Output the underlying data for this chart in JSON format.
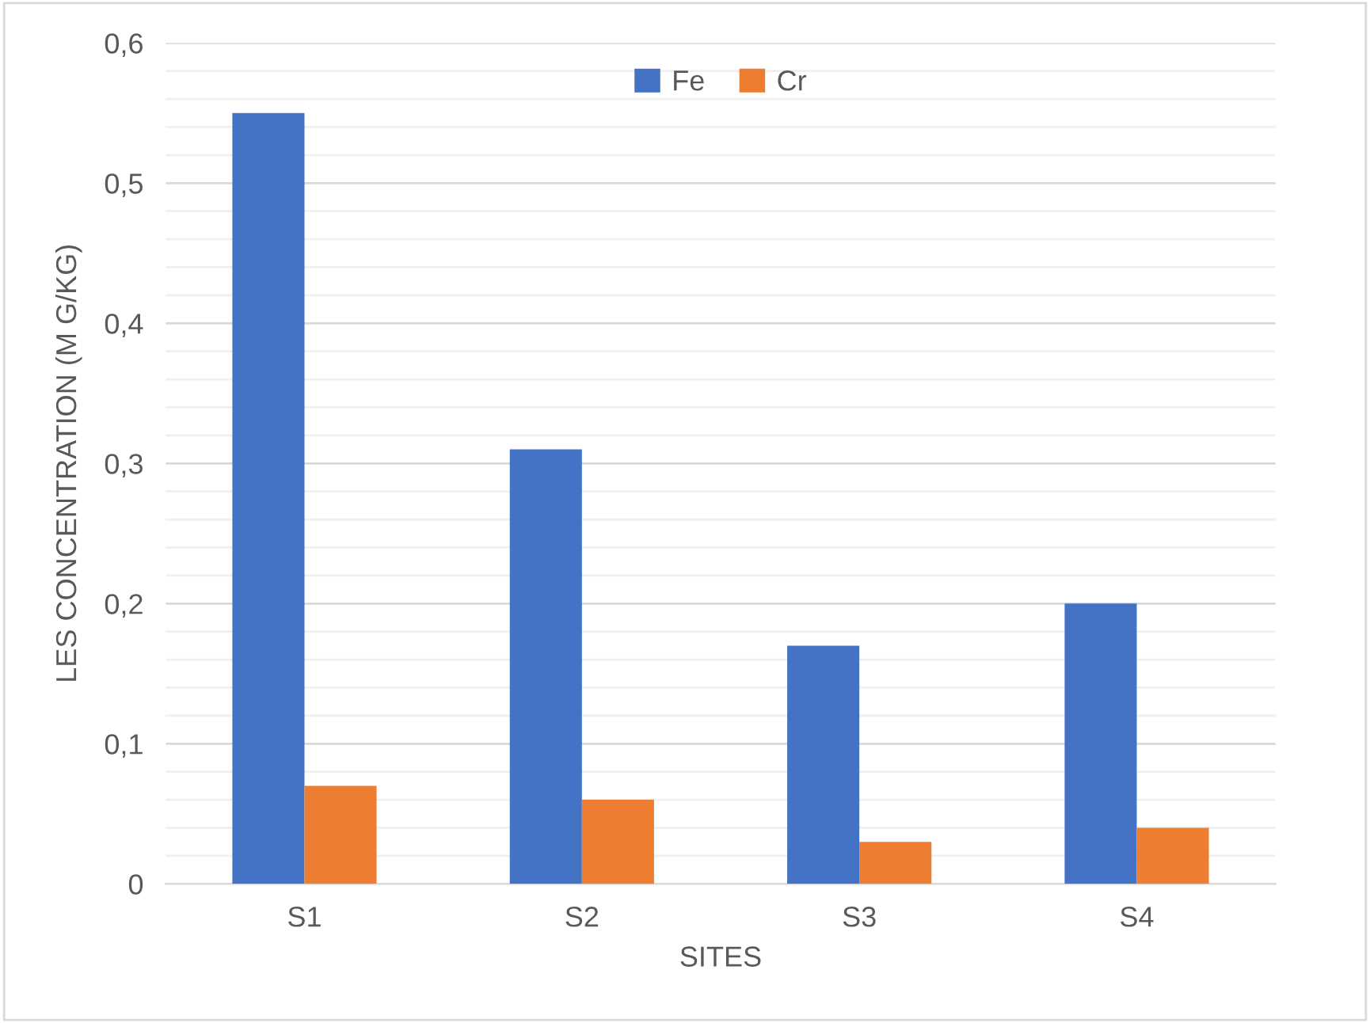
{
  "chart_data": {
    "type": "bar",
    "xlabel": "SITES",
    "ylabel": "LES CONCENTRATION (M G/KG)",
    "categories": [
      "S1",
      "S2",
      "S3",
      "S4"
    ],
    "series": [
      {
        "name": "Fe",
        "color": "#4472c4",
        "values": [
          0.55,
          0.31,
          0.17,
          0.2
        ]
      },
      {
        "name": "Cr",
        "color": "#ed7d31",
        "values": [
          0.07,
          0.06,
          0.03,
          0.04
        ]
      }
    ],
    "ylim": [
      0,
      0.6
    ],
    "yticks": [
      {
        "value": 0,
        "label": "0"
      },
      {
        "value": 0.1,
        "label": "0,1"
      },
      {
        "value": 0.2,
        "label": "0,2"
      },
      {
        "value": 0.3,
        "label": "0,3"
      },
      {
        "value": 0.4,
        "label": "0,4"
      },
      {
        "value": 0.5,
        "label": "0,5"
      },
      {
        "value": 0.6,
        "label": "0,6"
      }
    ],
    "grid": "y",
    "legend": "top"
  }
}
